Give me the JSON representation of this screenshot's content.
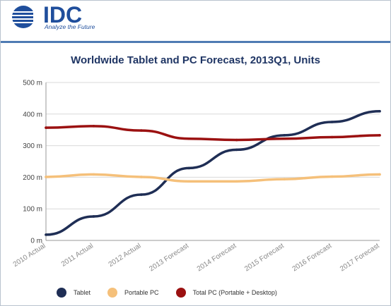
{
  "brand": {
    "logo_text": "IDC",
    "tagline": "Analyze the Future",
    "color": "#1f4e9c"
  },
  "chart_data": {
    "type": "line",
    "title": "Worldwide Tablet and PC Forecast, 2013Q1, Units",
    "categories": [
      "2010 Actual",
      "2011 Actual",
      "2012 Actual",
      "2013 Forecast",
      "2014 Forecast",
      "2015 Forecast",
      "2016 Forecast",
      "2017 Forecast"
    ],
    "y_ticks": [
      "0 m",
      "100 m",
      "200 m",
      "300 m",
      "400 m",
      "500 m"
    ],
    "ylim": [
      0,
      500
    ],
    "grid": true,
    "legend_position": "bottom",
    "series": [
      {
        "name": "Tablet",
        "color": "#1f2e55",
        "values": [
          18,
          76,
          145,
          229,
          287,
          333,
          375,
          409
        ]
      },
      {
        "name": "Portable PC",
        "color": "#f5c07a",
        "values": [
          201,
          209,
          201,
          187,
          187,
          194,
          202,
          209
        ]
      },
      {
        "name": "Total PC (Portable + Desktop)",
        "color": "#9b1111",
        "values": [
          357,
          362,
          348,
          322,
          318,
          322,
          327,
          333
        ]
      }
    ]
  }
}
